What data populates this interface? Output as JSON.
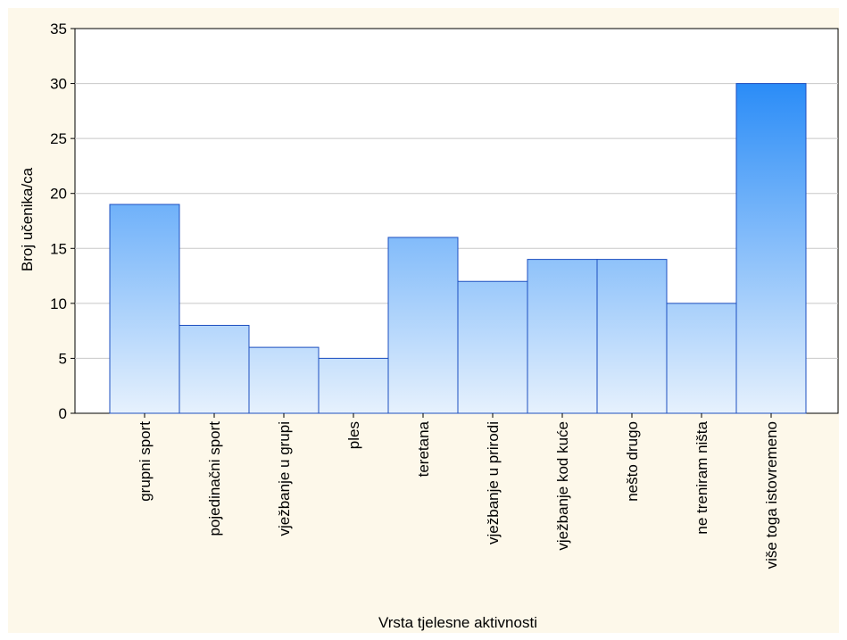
{
  "chart_data": {
    "type": "bar",
    "title": "",
    "xlabel": "Vrsta tjelesne aktivnosti",
    "ylabel": "Broj učenika/ca",
    "ylim": [
      0,
      35
    ],
    "yticks": [
      0,
      5,
      10,
      15,
      20,
      25,
      30,
      35
    ],
    "grid": true,
    "categories": [
      "grupni sport",
      "pojedinačni sport",
      "vježbanje u grupi",
      "ples",
      "teretana",
      "vježbanje u prirodi",
      "vježbanje kod kuće",
      "nešto drugo",
      "ne treniram ništa",
      "više toga istovremeno"
    ],
    "values": [
      19,
      8,
      6,
      5,
      16,
      12,
      14,
      14,
      10,
      30
    ],
    "colors": {
      "bar_top": "#2a8cf7",
      "bar_bottom": "#e6f1fd",
      "bar_edge": "#1d4fc0",
      "grid": "#c8c8c8",
      "background": "#fdf8ea",
      "plot_background": "#ffffff"
    }
  }
}
